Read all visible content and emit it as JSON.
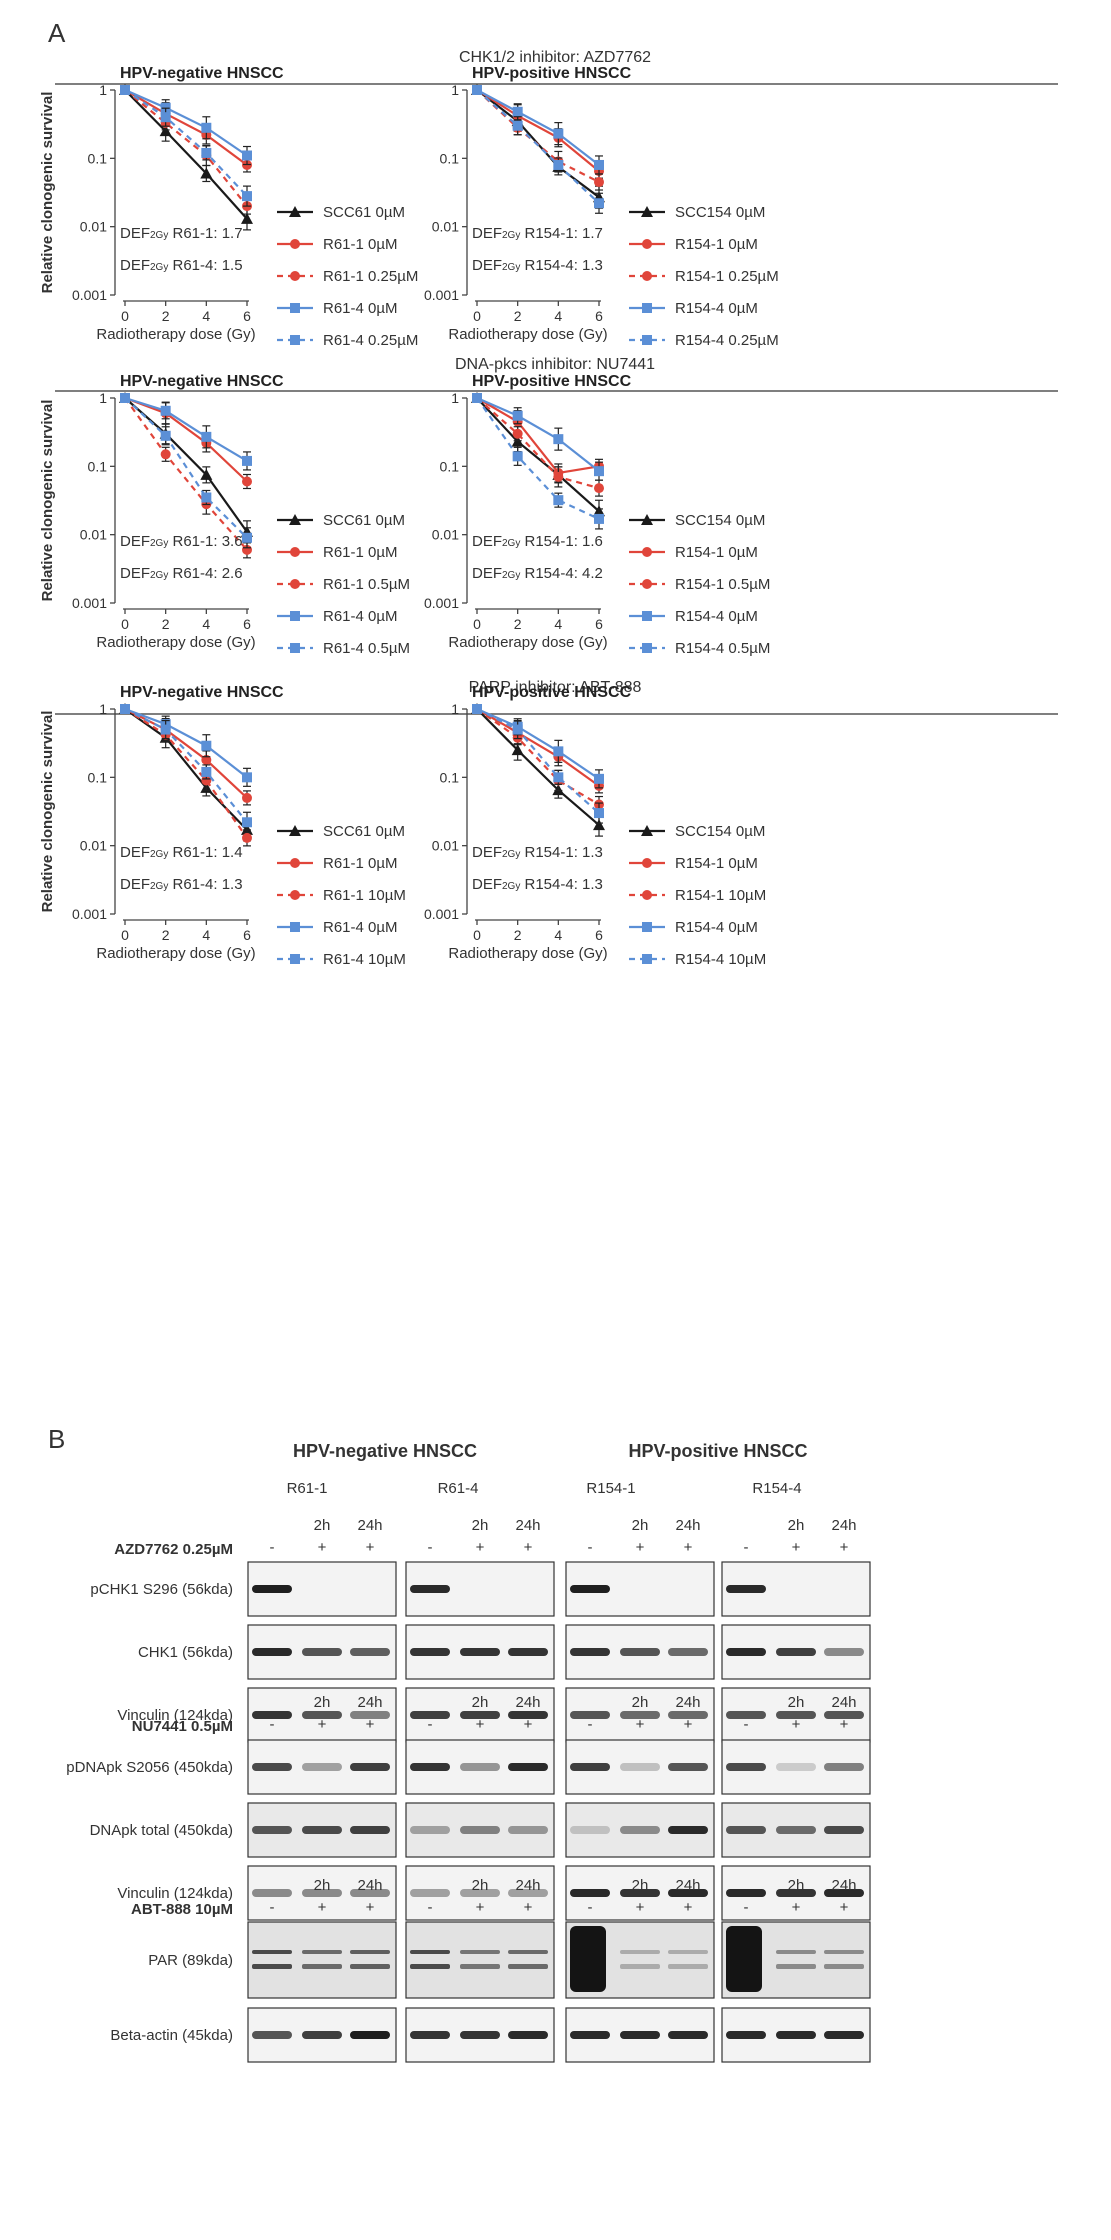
{
  "panel_a_label": "A",
  "panel_b_label": "B",
  "colors": {
    "black_series": "#1a1a1a",
    "red_series": "#e0453a",
    "blue_series": "#5b8fd6",
    "rule": "#555555",
    "band_dark": "#1e1e1e"
  },
  "sections": [
    {
      "title": "CHK1/2 inhibitor: AZD7762"
    },
    {
      "title": "DNA-pkcs inhibitor: NU7441"
    },
    {
      "title": "PARP inhibitor: ABT-888"
    }
  ],
  "axis_common": {
    "ylabel": "Relative clonogenic survival",
    "xlabel": "Radiotherapy dose (Gy)",
    "yticks": [
      "1",
      "0.1",
      "0.01",
      "0.001"
    ],
    "xticks": [
      "0",
      "2",
      "4",
      "6"
    ]
  },
  "chart_data": [
    {
      "type": "line",
      "title": "HPV-negative HNSCC",
      "xlabel": "Radiotherapy dose (Gy)",
      "ylabel": "Relative clonogenic survival",
      "yscale": "log",
      "ylim": [
        0.001,
        1
      ],
      "xlim": [
        0,
        6
      ],
      "x": [
        0,
        2,
        4,
        6
      ],
      "series": [
        {
          "name": "SCC61 0µM",
          "color": "black",
          "dash": false,
          "marker": "triangle",
          "values": [
            1,
            0.25,
            0.06,
            0.013
          ]
        },
        {
          "name": "R61-1 0µM",
          "color": "red",
          "dash": false,
          "marker": "circle",
          "values": [
            1,
            0.45,
            0.22,
            0.08
          ]
        },
        {
          "name": "R61-1 0.25µM",
          "color": "red",
          "dash": true,
          "marker": "circle",
          "values": [
            1,
            0.33,
            0.11,
            0.02
          ]
        },
        {
          "name": "R61-4 0µM",
          "color": "blue",
          "dash": false,
          "marker": "square",
          "values": [
            1,
            0.55,
            0.28,
            0.11
          ]
        },
        {
          "name": "R61-4 0.25µM",
          "color": "blue",
          "dash": true,
          "marker": "square",
          "values": [
            1,
            0.4,
            0.12,
            0.028
          ]
        }
      ],
      "annotations": [
        "DEF2Gy R61-1: 1.7",
        "DEF2Gy R61-4: 1.5"
      ]
    },
    {
      "type": "line",
      "title": "HPV-positive HNSCC",
      "xlabel": "Radiotherapy dose (Gy)",
      "ylabel": "Relative clonogenic survival",
      "yscale": "log",
      "ylim": [
        0.001,
        1
      ],
      "xlim": [
        0,
        6
      ],
      "x": [
        0,
        2,
        4,
        6
      ],
      "series": [
        {
          "name": "SCC154 0µM",
          "color": "black",
          "dash": false,
          "marker": "triangle",
          "values": [
            1,
            0.35,
            0.075,
            0.027
          ]
        },
        {
          "name": "R154-1 0µM",
          "color": "red",
          "dash": false,
          "marker": "circle",
          "values": [
            1,
            0.42,
            0.2,
            0.065
          ]
        },
        {
          "name": "R154-1 0.25µM",
          "color": "red",
          "dash": true,
          "marker": "circle",
          "values": [
            1,
            0.28,
            0.09,
            0.045
          ]
        },
        {
          "name": "R154-4 0µM",
          "color": "blue",
          "dash": false,
          "marker": "square",
          "values": [
            1,
            0.48,
            0.23,
            0.08
          ]
        },
        {
          "name": "R154-4 0.25µM",
          "color": "blue",
          "dash": true,
          "marker": "square",
          "values": [
            1,
            0.3,
            0.08,
            0.022
          ]
        }
      ],
      "annotations": [
        "DEF2Gy R154-1: 1.7",
        "DEF2Gy R154-4: 1.3"
      ]
    },
    {
      "type": "line",
      "title": "HPV-negative HNSCC",
      "xlabel": "Radiotherapy dose (Gy)",
      "ylabel": "Relative clonogenic survival",
      "yscale": "log",
      "ylim": [
        0.001,
        1
      ],
      "xlim": [
        0,
        6
      ],
      "x": [
        0,
        2,
        4,
        6
      ],
      "series": [
        {
          "name": "SCC61 0µM",
          "color": "black",
          "dash": false,
          "marker": "triangle",
          "values": [
            1,
            0.3,
            0.075,
            0.011
          ]
        },
        {
          "name": "R61-1 0µM",
          "color": "red",
          "dash": false,
          "marker": "circle",
          "values": [
            1,
            0.6,
            0.22,
            0.06
          ]
        },
        {
          "name": "R61-1 0.5µM",
          "color": "red",
          "dash": true,
          "marker": "circle",
          "values": [
            1,
            0.15,
            0.028,
            0.006
          ]
        },
        {
          "name": "R61-4 0µM",
          "color": "blue",
          "dash": false,
          "marker": "square",
          "values": [
            1,
            0.65,
            0.27,
            0.12
          ]
        },
        {
          "name": "R61-4 0.5µM",
          "color": "blue",
          "dash": true,
          "marker": "square",
          "values": [
            1,
            0.28,
            0.035,
            0.009
          ]
        }
      ],
      "annotations": [
        "DEF2Gy R61-1: 3.6",
        "DEF2Gy R61-4: 2.6"
      ]
    },
    {
      "type": "line",
      "title": "HPV-positive HNSCC",
      "xlabel": "Radiotherapy dose (Gy)",
      "ylabel": "Relative clonogenic survival",
      "yscale": "log",
      "ylim": [
        0.001,
        1
      ],
      "xlim": [
        0,
        6
      ],
      "x": [
        0,
        2,
        4,
        6
      ],
      "series": [
        {
          "name": "SCC154 0µM",
          "color": "black",
          "dash": false,
          "marker": "triangle",
          "values": [
            1,
            0.23,
            0.075,
            0.022
          ]
        },
        {
          "name": "R154-1 0µM",
          "color": "red",
          "dash": false,
          "marker": "circle",
          "values": [
            1,
            0.45,
            0.08,
            0.1
          ]
        },
        {
          "name": "R154-1 0.5µM",
          "color": "red",
          "dash": true,
          "marker": "circle",
          "values": [
            1,
            0.3,
            0.07,
            0.048
          ]
        },
        {
          "name": "R154-4 0µM",
          "color": "blue",
          "dash": false,
          "marker": "square",
          "values": [
            1,
            0.55,
            0.25,
            0.085
          ]
        },
        {
          "name": "R154-4 0.5µM",
          "color": "blue",
          "dash": true,
          "marker": "square",
          "values": [
            1,
            0.14,
            0.032,
            0.017
          ]
        }
      ],
      "annotations": [
        "DEF2Gy R154-1: 1.6",
        "DEF2Gy R154-4: 4.2"
      ]
    },
    {
      "type": "line",
      "title": "HPV-negative HNSCC",
      "xlabel": "Radiotherapy dose (Gy)",
      "ylabel": "Relative clonogenic survival",
      "yscale": "log",
      "ylim": [
        0.001,
        1
      ],
      "xlim": [
        0,
        6
      ],
      "x": [
        0,
        2,
        4,
        6
      ],
      "series": [
        {
          "name": "SCC61 0µM",
          "color": "black",
          "dash": false,
          "marker": "triangle",
          "values": [
            1,
            0.38,
            0.07,
            0.017
          ]
        },
        {
          "name": "R61-1 0µM",
          "color": "red",
          "dash": false,
          "marker": "circle",
          "values": [
            1,
            0.5,
            0.18,
            0.05
          ]
        },
        {
          "name": "R61-1 10µM",
          "color": "red",
          "dash": true,
          "marker": "circle",
          "values": [
            1,
            0.42,
            0.09,
            0.013
          ]
        },
        {
          "name": "R61-4 0µM",
          "color": "blue",
          "dash": false,
          "marker": "square",
          "values": [
            1,
            0.6,
            0.29,
            0.1
          ]
        },
        {
          "name": "R61-4 10µM",
          "color": "blue",
          "dash": true,
          "marker": "square",
          "values": [
            1,
            0.5,
            0.12,
            0.022
          ]
        }
      ],
      "annotations": [
        "DEF2Gy R61-1: 1.4",
        "DEF2Gy R61-4: 1.3"
      ]
    },
    {
      "type": "line",
      "title": "HPV-positive HNSCC",
      "xlabel": "Radiotherapy dose (Gy)",
      "ylabel": "Relative clonogenic survival",
      "yscale": "log",
      "ylim": [
        0.001,
        1
      ],
      "xlim": [
        0,
        6
      ],
      "x": [
        0,
        2,
        4,
        6
      ],
      "series": [
        {
          "name": "SCC154 0µM",
          "color": "black",
          "dash": false,
          "marker": "triangle",
          "values": [
            1,
            0.25,
            0.065,
            0.02
          ]
        },
        {
          "name": "R154-1 0µM",
          "color": "red",
          "dash": false,
          "marker": "circle",
          "values": [
            1,
            0.45,
            0.2,
            0.075
          ]
        },
        {
          "name": "R154-1 10µM",
          "color": "red",
          "dash": true,
          "marker": "circle",
          "values": [
            1,
            0.38,
            0.09,
            0.04
          ]
        },
        {
          "name": "R154-4 0µM",
          "color": "blue",
          "dash": false,
          "marker": "square",
          "values": [
            1,
            0.55,
            0.24,
            0.095
          ]
        },
        {
          "name": "R154-4 10µM",
          "color": "blue",
          "dash": true,
          "marker": "square",
          "values": [
            1,
            0.5,
            0.1,
            0.03
          ]
        }
      ],
      "annotations": [
        "DEF2Gy R154-1: 1.3",
        "DEF2Gy R154-4: 1.3"
      ]
    }
  ],
  "western": {
    "group_titles": [
      "HPV-negative HNSCC",
      "HPV-positive HNSCC"
    ],
    "cell_lines": [
      "R61-1",
      "R61-4",
      "R154-1",
      "R154-4"
    ],
    "time_labels": [
      "2h",
      "24h"
    ],
    "signs": [
      "-",
      "+",
      "+"
    ],
    "blocks": [
      {
        "treatment": "AZD7762 0.25µM",
        "rows": [
          {
            "label": "pCHK1 S296 (56kda)",
            "intensity": [
              [
                0.95,
                0.0,
                0.0
              ],
              [
                0.9,
                0.0,
                0.0
              ],
              [
                0.95,
                0.0,
                0.0
              ],
              [
                0.9,
                0.0,
                0.0
              ]
            ]
          },
          {
            "label": "CHK1 (56kda)",
            "intensity": [
              [
                0.9,
                0.7,
                0.65
              ],
              [
                0.85,
                0.85,
                0.85
              ],
              [
                0.85,
                0.7,
                0.6
              ],
              [
                0.9,
                0.8,
                0.45
              ]
            ]
          },
          {
            "label": "Vinculin (124kda)",
            "intensity": [
              [
                0.85,
                0.7,
                0.5
              ],
              [
                0.8,
                0.8,
                0.85
              ],
              [
                0.7,
                0.6,
                0.6
              ],
              [
                0.7,
                0.7,
                0.7
              ]
            ]
          }
        ]
      },
      {
        "treatment": "NU7441 0.5µM",
        "rows": [
          {
            "label": "pDNApk S2056 (450kda)",
            "intensity": [
              [
                0.75,
                0.35,
                0.8
              ],
              [
                0.85,
                0.4,
                0.9
              ],
              [
                0.8,
                0.2,
                0.7
              ],
              [
                0.75,
                0.15,
                0.5
              ]
            ]
          },
          {
            "label": "DNApk total (450kda)",
            "intensity": [
              [
                0.7,
                0.75,
                0.8
              ],
              [
                0.35,
                0.5,
                0.4
              ],
              [
                0.2,
                0.45,
                0.9
              ],
              [
                0.7,
                0.6,
                0.75
              ]
            ]
          },
          {
            "label": "Vinculin (124kda)",
            "intensity": [
              [
                0.45,
                0.45,
                0.45
              ],
              [
                0.35,
                0.35,
                0.35
              ],
              [
                0.9,
                0.85,
                0.9
              ],
              [
                0.9,
                0.85,
                0.9
              ]
            ]
          }
        ]
      },
      {
        "treatment": "ABT-888 10µM",
        "rows": [
          {
            "label": "PAR (89kda)",
            "intensity": [
              [
                0.75,
                0.6,
                0.65
              ],
              [
                0.75,
                0.55,
                0.6
              ],
              [
                1.0,
                0.3,
                0.3
              ],
              [
                1.0,
                0.45,
                0.45
              ]
            ]
          },
          {
            "label": "Beta-actin (45kda)",
            "intensity": [
              [
                0.7,
                0.8,
                0.95
              ],
              [
                0.85,
                0.85,
                0.9
              ],
              [
                0.9,
                0.9,
                0.9
              ],
              [
                0.9,
                0.9,
                0.9
              ]
            ]
          }
        ]
      }
    ]
  }
}
